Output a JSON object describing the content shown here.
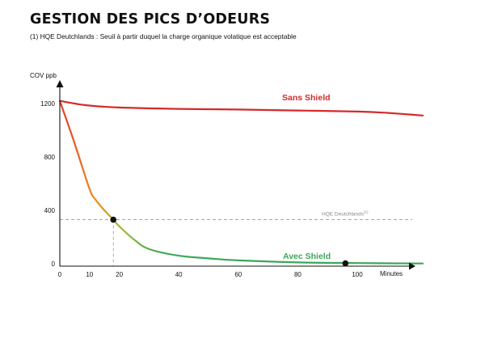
{
  "header": {
    "title": "GESTION DES PICS D’ODEURS",
    "subtitle": "(1) HQE Deutchlands : Seuil à partir duquel la charge organique volatique est acceptable"
  },
  "chart_data": {
    "type": "line",
    "title": "GESTION DES PICS D’ODEURS",
    "ylabel": "COV ppb",
    "xlabel": "Minutes",
    "xlim": [
      0,
      120
    ],
    "ylim": [
      0,
      1400
    ],
    "x_ticks": [
      0,
      10,
      20,
      40,
      60,
      80,
      100
    ],
    "x_tick_labels": [
      "0",
      "10",
      "20",
      "40",
      "60",
      "80",
      "100"
    ],
    "y_ticks": [
      0,
      400,
      800,
      1200
    ],
    "y_tick_labels": [
      "0",
      "400",
      "800",
      "1200"
    ],
    "threshold": {
      "label": "HQE Deutchlands",
      "superscript": "(1)",
      "value": 330
    },
    "series": [
      {
        "name": "Sans Shield",
        "label": "Sans Shield",
        "color": "#d42a2a",
        "x": [
          0,
          5,
          10,
          20,
          40,
          60,
          80,
          100,
          110,
          122
        ],
        "values": [
          1220,
          1200,
          1185,
          1170,
          1160,
          1155,
          1148,
          1140,
          1130,
          1110
        ]
      },
      {
        "name": "Avec Shield",
        "label": "Avec Shield",
        "color": "#3aa857",
        "x": [
          0,
          5,
          10,
          12,
          15,
          18,
          20,
          25,
          30,
          40,
          50,
          60,
          80,
          100,
          110,
          122
        ],
        "values": [
          1220,
          900,
          560,
          480,
          400,
          330,
          280,
          180,
          110,
          60,
          40,
          25,
          10,
          5,
          3,
          2
        ]
      }
    ],
    "markers": [
      {
        "x": 18,
        "y": 330
      },
      {
        "x": 96,
        "y": 3
      }
    ]
  }
}
